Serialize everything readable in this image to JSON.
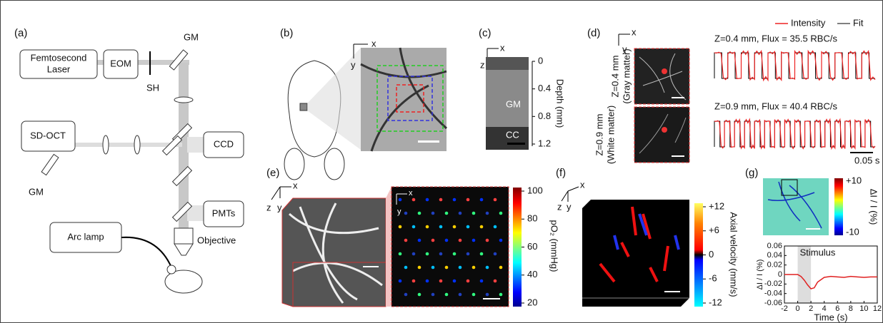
{
  "a": {
    "label": "(a)",
    "laser": [
      "Femtosecond",
      "Laser"
    ],
    "eom": "EOM",
    "sh": "SH",
    "gm_top": "GM",
    "sdoct": "SD-OCT",
    "ccd": "CCD",
    "pmts": "PMTs",
    "objective": "Objective",
    "arc_lamp": "Arc lamp",
    "gm_left": "GM"
  },
  "b": {
    "label": "(b)",
    "x": "x",
    "y": "y"
  },
  "c": {
    "label": "(c)",
    "x": "x",
    "z": "z",
    "gm": "GM",
    "cc": "CC",
    "depth_ticks": [
      "0",
      "0.4",
      "0.8",
      "1.2"
    ],
    "depth_label": "Depth (mm)"
  },
  "d": {
    "label": "(d)",
    "x": "x",
    "y": "y",
    "top_label": [
      "Z=0.4 mm",
      "(Gray matter)"
    ],
    "bottom_label": [
      "Z=0.9 mm",
      "(White matter)"
    ],
    "legend": [
      "Intensity",
      "Fit"
    ],
    "top_trace": "Z=0.4 mm, Flux = 35.5 RBC/s",
    "bottom_trace": "Z=0.9 mm, Flux = 40.4 RBC/s",
    "scale": "0.05 s"
  },
  "e": {
    "label": "(e)",
    "x": "x",
    "z": "z",
    "y": "y",
    "x2": "x",
    "y2": "y",
    "ticks": [
      "100",
      "80",
      "60",
      "40",
      "20"
    ],
    "colorbar_label": "pO₂ (mmHg)"
  },
  "f": {
    "label": "(f)",
    "x": "x",
    "z": "z",
    "y": "y",
    "ticks": [
      "+12",
      "+6",
      "0",
      "-6",
      "-12"
    ],
    "colorbar_label": "Axial velocity (mm/s)"
  },
  "g": {
    "label": "(g)",
    "ticks": [
      "+10",
      "-10"
    ],
    "colorbar_label": "ΔI / I (%)",
    "plot": {
      "stimulus": "Stimulus",
      "xlabel": "Time (s)",
      "ylabel": "ΔI / I (%)",
      "color": "#e02020",
      "xlim": [
        -2,
        12
      ],
      "ylim": [
        -0.06,
        0.06
      ],
      "xticks": [
        -2,
        0,
        2,
        4,
        6,
        8,
        10,
        12
      ],
      "yticks": [
        -0.06,
        -0.04,
        -0.02,
        0,
        0.02,
        0.04,
        0.06
      ],
      "stimulus_range": [
        0,
        2
      ],
      "x": [
        -2,
        -1,
        0,
        0.5,
        1,
        1.5,
        2,
        2.5,
        3,
        4,
        5,
        6,
        7,
        8,
        9,
        10,
        11,
        12
      ],
      "values": [
        0,
        0,
        0,
        -0.004,
        -0.012,
        -0.022,
        -0.03,
        -0.028,
        -0.016,
        -0.006,
        -0.004,
        -0.005,
        -0.006,
        -0.004,
        -0.005,
        -0.006,
        -0.005,
        -0.005
      ]
    }
  }
}
